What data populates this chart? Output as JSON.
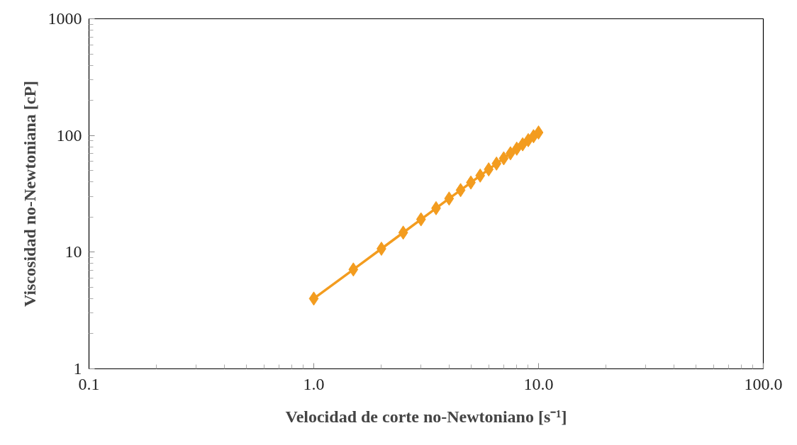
{
  "chart_data": {
    "type": "line",
    "xlabel": "Velocidad de corte no-Newtoniano [s⁻¹]",
    "ylabel": "Viscosidad no-Newtoniana [cP]",
    "x": [
      1,
      1.5,
      2,
      2.5,
      3,
      3.5,
      4,
      4.5,
      5,
      5.5,
      6,
      6.5,
      7,
      7.5,
      8,
      8.5,
      9,
      9.5,
      10
    ],
    "series": [
      {
        "color": "#f39c1f",
        "values": [
          4.0,
          7.1,
          10.7,
          14.7,
          19.1,
          23.8,
          28.8,
          34.0,
          39.5,
          45.3,
          51.2,
          57.4,
          63.7,
          70.3,
          77.1,
          84.0,
          91.2,
          98.5,
          106
        ]
      }
    ],
    "log": "xy",
    "xlim": [
      0.1,
      100
    ],
    "ylim": [
      1,
      1000
    ],
    "xticks": [
      {
        "value": 0.1,
        "label": "0.1"
      },
      {
        "value": 1,
        "label": "1.0"
      },
      {
        "value": 10,
        "label": "10.0"
      },
      {
        "value": 100,
        "label": "100.0"
      }
    ],
    "yticks": [
      1,
      10,
      100,
      1000
    ],
    "grid": false,
    "marker": "diamond",
    "line_style": "solid"
  }
}
